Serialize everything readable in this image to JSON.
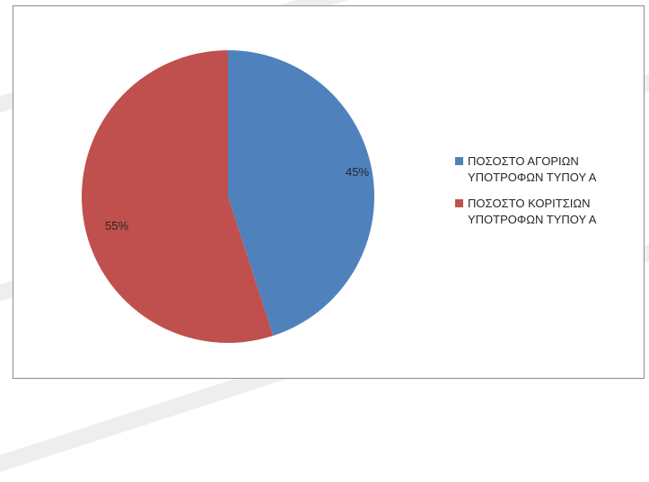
{
  "chart_data": {
    "type": "pie",
    "slices": [
      {
        "name": "ΠΟΣΟΣΤΟ ΑΓΟΡΙΩΝ\nΥΠΟΤΡΟΦΩΝ ΤΥΠΟΥ Α",
        "value": 45,
        "label": "45%",
        "color": "#4f81bd"
      },
      {
        "name": "ΠΟΣΟΣΤΟ ΚΟΡΙΤΣΙΩΝ\nΥΠΟΤΡΟΦΩΝ ΤΥΠΟΥ Α",
        "value": 55,
        "label": "55%",
        "color": "#c0504d"
      }
    ],
    "legend_position": "right",
    "start_angle": "12 o'clock, clockwise"
  }
}
